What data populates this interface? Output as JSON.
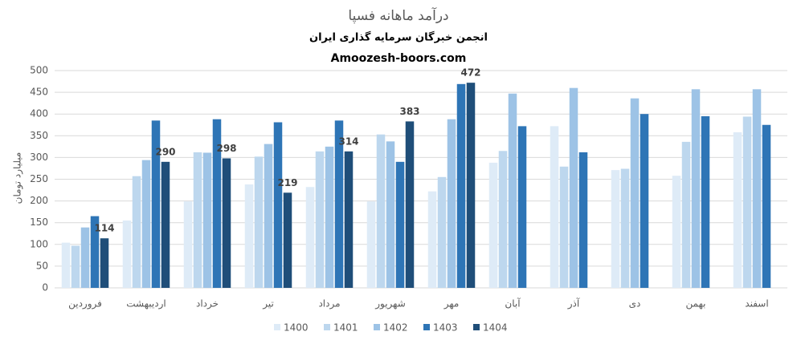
{
  "chart_data": {
    "type": "bar",
    "title": "درآمد ماهانه فسپا",
    "subtitle": "انجمن خبرگان سرمایه گذاری ایران",
    "website": "Amoozesh-boors.com",
    "y_label": "میلیارد تومان",
    "categories": [
      "فروردین",
      "اردیبهشت",
      "خرداد",
      "تیر",
      "مرداد",
      "شهریور",
      "مهر",
      "آبان",
      "آذر",
      "دی",
      "بهمن",
      "اسفند"
    ],
    "series": [
      {
        "name": "1400",
        "color": "#deebf7",
        "values": [
          104,
          155,
          199,
          238,
          232,
          199,
          222,
          288,
          372,
          271,
          258,
          358
        ]
      },
      {
        "name": "1401",
        "color": "#bdd7ee",
        "values": [
          97,
          257,
          312,
          302,
          314,
          353,
          255,
          315,
          279,
          274,
          336,
          394
        ]
      },
      {
        "name": "1402",
        "color": "#9dc3e6",
        "values": [
          139,
          294,
          311,
          331,
          325,
          337,
          388,
          447,
          460,
          436,
          457,
          457
        ]
      },
      {
        "name": "1403",
        "color": "#2e75b6",
        "values": [
          165,
          385,
          388,
          381,
          385,
          290,
          469,
          372,
          312,
          400,
          395,
          375
        ]
      },
      {
        "name": "1404",
        "color": "#1f4e79",
        "values": [
          114,
          290,
          298,
          219,
          314,
          383,
          472,
          null,
          null,
          null,
          null,
          null
        ],
        "show_labels": true
      }
    ],
    "ylim": [
      0,
      500
    ],
    "yticks": [
      0,
      50,
      100,
      150,
      200,
      250,
      300,
      350,
      400,
      450,
      500
    ],
    "grid": true,
    "legend": "bottom"
  }
}
